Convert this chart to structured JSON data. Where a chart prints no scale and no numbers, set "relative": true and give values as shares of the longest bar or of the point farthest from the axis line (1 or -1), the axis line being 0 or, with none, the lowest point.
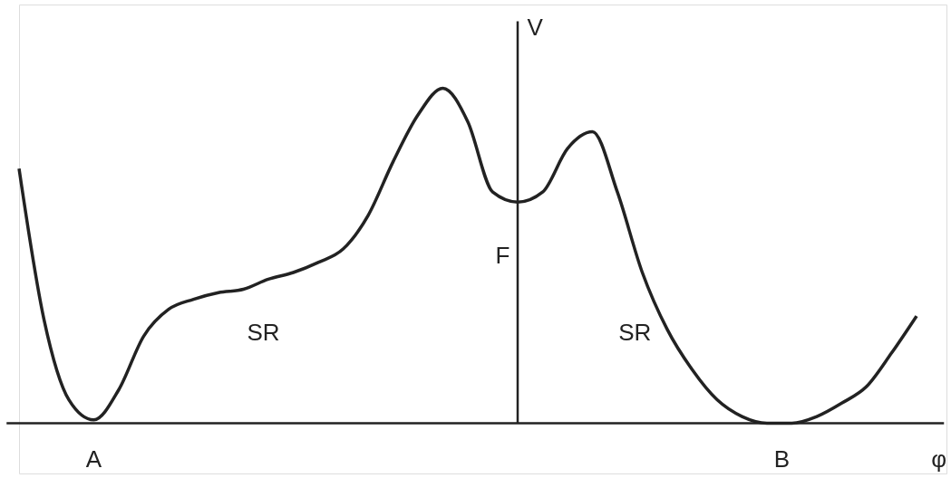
{
  "chart_data": {
    "type": "line",
    "relative": true,
    "xlabel": "φ",
    "ylabel": "V",
    "color": "#222222",
    "categories": [
      null,
      null,
      null,
      null,
      null,
      null,
      null,
      null,
      null,
      null,
      null,
      null,
      null,
      null,
      null,
      null,
      null,
      null,
      null,
      null,
      null,
      null,
      null,
      null,
      null,
      null,
      null,
      null,
      null,
      null,
      null,
      null,
      null,
      null,
      null,
      null,
      null
    ],
    "values": [
      0.76,
      0.31,
      0.07,
      0.01,
      0.1,
      0.26,
      0.34,
      0.37,
      0.39,
      0.4,
      0.43,
      0.45,
      0.48,
      0.52,
      0.62,
      0.78,
      0.92,
      1.0,
      0.9,
      0.69,
      0.66,
      0.69,
      0.82,
      0.87,
      0.69,
      0.45,
      0.28,
      0.16,
      0.07,
      0.02,
      0.0,
      0.0,
      0.02,
      0.06,
      0.11,
      0.21,
      0.32
    ],
    "annotations": [
      "A",
      "B",
      "F",
      "SR",
      "SR"
    ]
  }
}
